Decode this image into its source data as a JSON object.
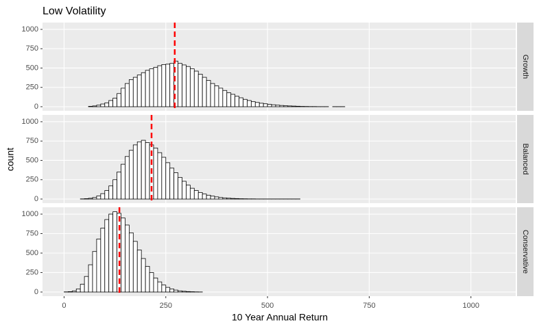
{
  "chart_data": {
    "type": "histogram",
    "title": "Low Volatility",
    "xlabel": "10 Year Annual Return",
    "ylabel": "count",
    "fill": "#ffffff",
    "outline": "#000000",
    "mean_color": "#ff0000",
    "xlim": [
      -53,
      1110
    ],
    "xticks": [
      0,
      250,
      500,
      750,
      1000
    ],
    "ylim": [
      -53,
      1088
    ],
    "yticks": [
      0,
      250,
      500,
      750,
      1000
    ],
    "grid": true,
    "bins": [
      0,
      10,
      20,
      30,
      40,
      50,
      60,
      70,
      80,
      90,
      100,
      110,
      120,
      130,
      140,
      150,
      160,
      170,
      180,
      190,
      200,
      210,
      220,
      230,
      240,
      250,
      260,
      270,
      280,
      290,
      300,
      310,
      320,
      330,
      340,
      350,
      360,
      370,
      380,
      390,
      400,
      410,
      420,
      430,
      440,
      450,
      460,
      470,
      480,
      490,
      500,
      510,
      520,
      530,
      540,
      550,
      560,
      570,
      580,
      590,
      600,
      610,
      620,
      630,
      640,
      650,
      660,
      670,
      680,
      690,
      700,
      710,
      720,
      730,
      740,
      750,
      760,
      770,
      780,
      790,
      800,
      810,
      820,
      830,
      840,
      850,
      860,
      870,
      880,
      890,
      900,
      910,
      920,
      930,
      940,
      950,
      960,
      970,
      980,
      990,
      1000,
      1010,
      1020,
      1030,
      1040,
      1050,
      1060
    ],
    "facets": [
      {
        "name": "Growth",
        "mean": 272,
        "values": [
          0,
          0,
          0,
          0,
          0,
          0,
          5,
          10,
          20,
          35,
          50,
          80,
          110,
          170,
          240,
          300,
          350,
          380,
          410,
          440,
          470,
          490,
          510,
          530,
          545,
          550,
          560,
          590,
          560,
          540,
          520,
          490,
          460,
          420,
          380,
          340,
          300,
          270,
          240,
          210,
          180,
          160,
          135,
          115,
          95,
          80,
          65,
          55,
          45,
          38,
          30,
          25,
          20,
          16,
          12,
          10,
          8,
          6,
          4,
          3,
          2,
          2,
          1,
          1,
          1,
          0,
          1,
          1,
          1,
          0,
          0,
          0,
          0,
          0,
          0,
          0,
          0,
          0,
          0,
          0,
          0,
          0,
          0,
          0,
          0,
          0,
          0,
          0,
          0,
          0,
          0,
          0,
          0,
          0,
          0,
          0,
          0,
          0,
          0,
          0,
          0,
          0,
          0,
          0,
          0,
          0
        ]
      },
      {
        "name": "Balanced",
        "mean": 215,
        "values": [
          0,
          0,
          0,
          0,
          2,
          5,
          10,
          20,
          40,
          70,
          110,
          170,
          250,
          350,
          450,
          550,
          630,
          700,
          740,
          760,
          730,
          700,
          660,
          600,
          540,
          470,
          400,
          340,
          280,
          230,
          180,
          140,
          110,
          85,
          65,
          50,
          38,
          28,
          20,
          15,
          11,
          8,
          6,
          4,
          3,
          2,
          2,
          1,
          1,
          1,
          1,
          1,
          1,
          1,
          1,
          1,
          1,
          1,
          0,
          0,
          0,
          0,
          0,
          0,
          0,
          0,
          0,
          0,
          0,
          0,
          0,
          0,
          0,
          0,
          0,
          0,
          0,
          0,
          0,
          0,
          0,
          0,
          0,
          0,
          0,
          0,
          0,
          0,
          0,
          0,
          0,
          0,
          0,
          0,
          0,
          0,
          0,
          0,
          0,
          0,
          0,
          0,
          0,
          0,
          0,
          0
        ]
      },
      {
        "name": "Conservative",
        "mean": 136,
        "values": [
          2,
          5,
          15,
          40,
          100,
          200,
          350,
          520,
          680,
          820,
          930,
          1000,
          1030,
          1010,
          950,
          860,
          760,
          650,
          540,
          430,
          330,
          250,
          180,
          130,
          90,
          60,
          40,
          25,
          15,
          10,
          6,
          4,
          2,
          1,
          0,
          0,
          0,
          0,
          0,
          0,
          0,
          0,
          0,
          0,
          0,
          0,
          0,
          0,
          0,
          0,
          0,
          0,
          0,
          0,
          0,
          0,
          0,
          0,
          0,
          0,
          0,
          0,
          0,
          0,
          0,
          0,
          0,
          0,
          0,
          0,
          0,
          0,
          0,
          0,
          0,
          0,
          0,
          0,
          0,
          0,
          0,
          0,
          0,
          0,
          0,
          0,
          0,
          0,
          0,
          0,
          0,
          0,
          0,
          0,
          0,
          0,
          0,
          0,
          0,
          0,
          0,
          0,
          0,
          0,
          0,
          0
        ]
      }
    ]
  }
}
